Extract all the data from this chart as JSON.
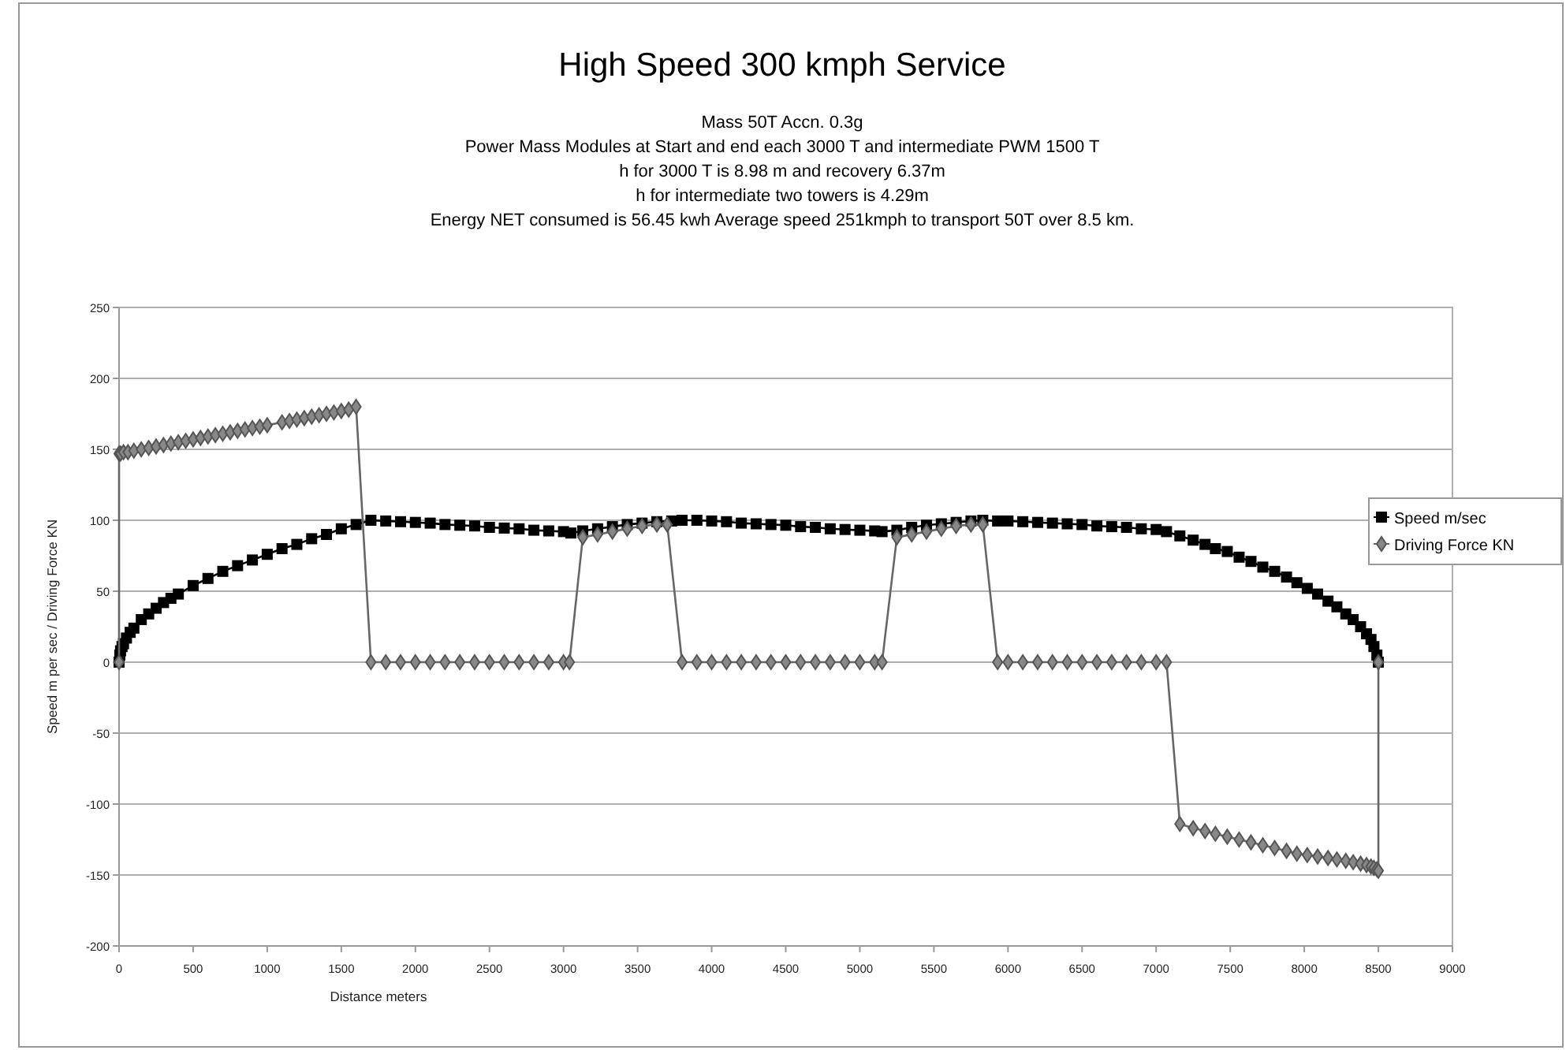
{
  "chart_data": {
    "type": "line",
    "title": "High Speed 300 kmph Service",
    "subtitle": "Mass 50T Accn. 0.3g\nPower Mass Modules at Start and end each 3000 T and intermediate PWM 1500 T\nh for 3000 T is 8.98 m and recovery 6.37m\nh for intermediate two towers is 4.29m\nEnergy NET consumed is 56.45 kwh Average speed 251kmph to transport 50T over 8.5 km.",
    "xlabel": "Distance meters",
    "ylabel": "Speed m per sec / Driving Force KN",
    "xlim": [
      0,
      9000
    ],
    "xticks": [
      0,
      500,
      1000,
      1500,
      2000,
      2500,
      3000,
      3500,
      4000,
      4500,
      5000,
      5500,
      6000,
      6500,
      7000,
      7500,
      8000,
      8500,
      9000
    ],
    "ylim": [
      -200,
      250
    ],
    "yticks": [
      -200,
      -150,
      -100,
      -50,
      0,
      50,
      100,
      150,
      200,
      250
    ],
    "grid": "y",
    "legend": "right",
    "series": [
      {
        "name": "Speed m/sec",
        "color": "#000000",
        "marker": "square",
        "x": [
          0,
          5,
          10,
          20,
          30,
          50,
          75,
          100,
          150,
          200,
          250,
          300,
          350,
          400,
          500,
          600,
          700,
          800,
          900,
          1000,
          1100,
          1200,
          1300,
          1400,
          1500,
          1600,
          1700,
          1800,
          1900,
          2000,
          2100,
          2200,
          2300,
          2400,
          2500,
          2600,
          2700,
          2800,
          2900,
          3000,
          3050,
          3130,
          3230,
          3330,
          3430,
          3530,
          3630,
          3730,
          3800,
          3900,
          4000,
          4100,
          4200,
          4300,
          4400,
          4500,
          4600,
          4700,
          4800,
          4900,
          5000,
          5100,
          5150,
          5250,
          5350,
          5450,
          5550,
          5650,
          5750,
          5830,
          5930,
          6000,
          6100,
          6200,
          6300,
          6400,
          6500,
          6600,
          6700,
          6800,
          6900,
          7000,
          7070,
          7160,
          7250,
          7330,
          7400,
          7480,
          7560,
          7640,
          7720,
          7800,
          7880,
          7950,
          8020,
          8090,
          8160,
          8220,
          8280,
          8330,
          8380,
          8420,
          8450,
          8470,
          8490,
          8500
        ],
        "values": [
          0,
          5,
          8,
          11,
          13,
          17,
          21,
          24,
          30,
          34,
          38,
          42,
          45,
          48,
          54,
          59,
          64,
          68,
          72,
          76,
          80,
          83,
          87,
          90,
          94,
          97,
          100,
          99.5,
          99,
          98.5,
          98,
          97,
          96.5,
          96,
          95,
          94.5,
          94,
          93,
          92.5,
          92,
          91,
          92.5,
          94,
          95.5,
          97,
          98,
          99,
          99.5,
          100,
          100,
          99.5,
          99,
          98,
          97.5,
          97,
          96.5,
          95.5,
          95,
          94,
          93.5,
          93,
          92.5,
          92,
          93,
          95,
          96.5,
          97.5,
          98.5,
          99.5,
          100,
          99.5,
          99.5,
          99,
          98.5,
          98,
          97.5,
          97,
          96,
          95.5,
          95,
          94,
          93.5,
          92,
          89,
          86,
          83,
          80,
          78,
          74,
          71,
          67,
          64,
          60,
          56,
          52,
          48,
          43,
          39,
          34,
          30,
          25,
          20,
          16,
          11,
          5,
          0
        ]
      },
      {
        "name": "Driving Force KN",
        "color": "#555555",
        "marker": "diamond",
        "x": [
          0,
          0,
          10,
          30,
          60,
          100,
          150,
          200,
          250,
          300,
          350,
          400,
          450,
          500,
          550,
          600,
          650,
          700,
          750,
          800,
          850,
          900,
          950,
          1000,
          1100,
          1150,
          1200,
          1250,
          1300,
          1350,
          1400,
          1450,
          1500,
          1550,
          1600,
          1700,
          1800,
          1900,
          2000,
          2100,
          2200,
          2300,
          2400,
          2500,
          2600,
          2700,
          2800,
          2900,
          3000,
          3040,
          3130,
          3230,
          3330,
          3430,
          3530,
          3630,
          3700,
          3800,
          3900,
          4000,
          4100,
          4200,
          4300,
          4400,
          4500,
          4600,
          4700,
          4800,
          4900,
          5000,
          5100,
          5150,
          5250,
          5350,
          5450,
          5550,
          5650,
          5750,
          5830,
          5930,
          6000,
          6100,
          6200,
          6300,
          6400,
          6500,
          6600,
          6700,
          6800,
          6900,
          7000,
          7070,
          7160,
          7250,
          7330,
          7400,
          7480,
          7560,
          7640,
          7720,
          7800,
          7880,
          7950,
          8020,
          8090,
          8160,
          8220,
          8280,
          8330,
          8380,
          8420,
          8450,
          8470,
          8490,
          8500,
          8500
        ],
        "values": [
          0,
          147,
          147,
          148,
          148,
          149,
          150,
          151,
          152,
          153,
          154,
          155,
          156,
          157,
          158,
          159,
          160,
          161,
          162,
          163,
          164,
          165,
          166,
          167,
          169,
          170,
          171,
          172,
          173,
          174,
          175,
          176,
          177,
          178,
          180,
          0,
          0,
          0,
          0,
          0,
          0,
          0,
          0,
          0,
          0,
          0,
          0,
          0,
          0,
          0,
          88,
          90,
          92,
          94,
          96,
          97,
          97,
          0,
          0,
          0,
          0,
          0,
          0,
          0,
          0,
          0,
          0,
          0,
          0,
          0,
          0,
          0,
          88,
          90,
          92,
          94,
          96,
          97,
          97,
          0,
          0,
          0,
          0,
          0,
          0,
          0,
          0,
          0,
          0,
          0,
          0,
          0,
          -114,
          -117,
          -119,
          -121,
          -123,
          -125,
          -127,
          -129,
          -131,
          -133,
          -135,
          -136,
          -137,
          -138,
          -139,
          -140,
          -141,
          -142,
          -143,
          -144,
          -145,
          -146,
          -147,
          0
        ]
      }
    ]
  }
}
